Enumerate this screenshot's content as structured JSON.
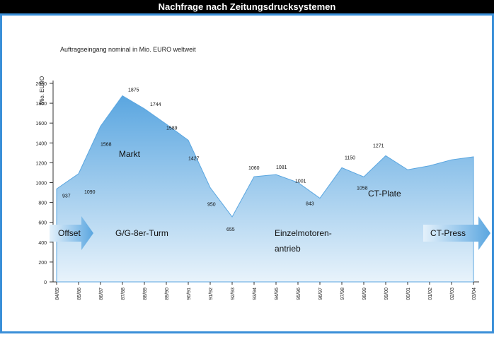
{
  "chart_data": {
    "type": "area",
    "title": "Nachfrage nach Zeitungsdrucksystemen",
    "subtitle": "Auftragseingang nominal in Mio. EURO weltweit",
    "y_label": "Mio. EURO",
    "categories": [
      "84/85",
      "85/86",
      "86/87",
      "87/88",
      "88/89",
      "89/90",
      "90/91",
      "91/92",
      "92/93",
      "93/94",
      "94/95",
      "95/96",
      "96/97",
      "97/98",
      "98/99",
      "99/00",
      "00/01",
      "01/02",
      "02/03",
      "03/04"
    ],
    "values": [
      937,
      1090,
      1568,
      1875,
      1744,
      1589,
      1427,
      950,
      655,
      1060,
      1081,
      1001,
      843,
      1150,
      1058,
      1271,
      1130,
      1170,
      1230,
      1260
    ],
    "value_labels": [
      "937",
      "1090",
      "1568",
      "1875",
      "1744",
      "1589",
      "1427",
      "950",
      "655",
      "1060",
      "1081",
      "1001",
      "843",
      "1150",
      "1058",
      "1271",
      null,
      null,
      null,
      null
    ],
    "color": "#5aa6e0",
    "ylim": [
      0,
      2000
    ],
    "yticks": [
      0,
      200,
      400,
      600,
      800,
      1000,
      1200,
      1400,
      1600,
      1800,
      2000
    ],
    "annotations": [
      "Markt",
      "Offset",
      "G/G-8er-Turm",
      "Einzelmotoren-",
      "antrieb",
      "CT-Plate",
      "CT-Press"
    ]
  }
}
